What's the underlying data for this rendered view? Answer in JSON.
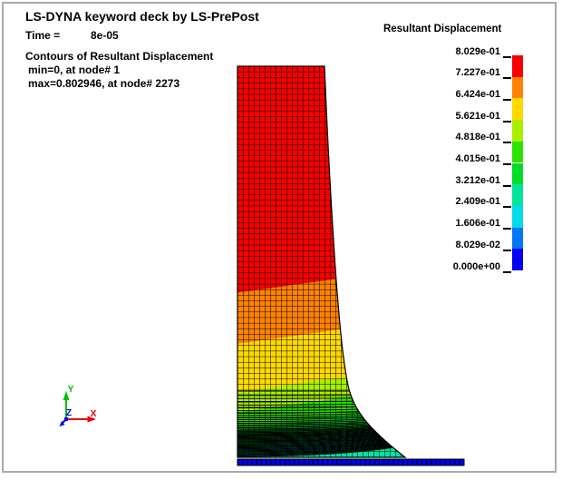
{
  "window": {
    "frame_color": "#a9a9a9",
    "background": "#ffffff"
  },
  "header": {
    "title": "LS-DYNA keyword deck by LS-PrePost",
    "time_label": "Time =",
    "time_value": "8e-05",
    "contour_title": "Contours of Resultant Displacement",
    "contour_min": "min=0, at node# 1",
    "contour_max": "max=0.802946, at node# 2273"
  },
  "legend": {
    "title": "Resultant Displacement",
    "labels": [
      "8.029e-01",
      "7.227e-01",
      "6.424e-01",
      "5.621e-01",
      "4.818e-01",
      "4.015e-01",
      "3.212e-01",
      "2.409e-01",
      "1.606e-01",
      "8.029e-02",
      "0.000e+00"
    ],
    "colors": [
      "#f80000",
      "#ff8200",
      "#ffd800",
      "#a8f000",
      "#2ce400",
      "#00dc28",
      "#00e49c",
      "#00dcec",
      "#0478f4",
      "#0400f0"
    ]
  },
  "triad": {
    "x_label": "X",
    "y_label": "Y",
    "z_label": "Z",
    "x_color": "#e80000",
    "y_color": "#00c000",
    "z_color": "#0000e8"
  },
  "viewport": {
    "wall_color": "#0000ee",
    "mesh_edge_color": "#000000"
  }
}
